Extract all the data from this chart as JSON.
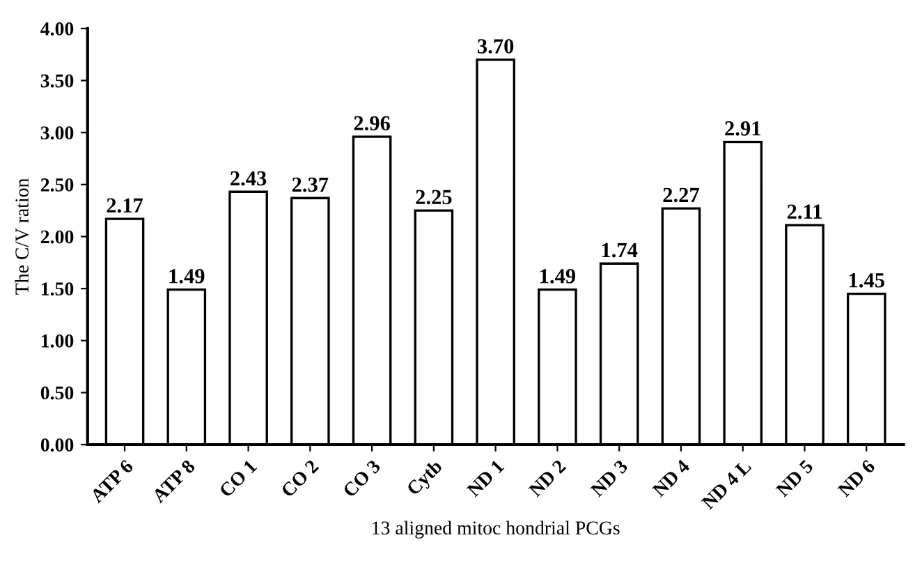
{
  "chart_data": {
    "type": "bar",
    "xlabel": "13 aligned mitoc hondrial PCGs",
    "ylabel": "The C/V ration",
    "categories": [
      "ATP 6",
      "ATP 8",
      "CO 1",
      "CO 2",
      "CO 3",
      "Cytb",
      "ND 1",
      "ND 2",
      "ND 3",
      "ND 4",
      "ND 4 L",
      "ND 5",
      "ND 6"
    ],
    "values": [
      2.17,
      1.49,
      2.43,
      2.37,
      2.96,
      2.25,
      3.7,
      1.49,
      1.74,
      2.27,
      2.91,
      2.11,
      1.45
    ],
    "value_labels": [
      "2.17",
      "1.49",
      "2.43",
      "2.37",
      "2.96",
      "2.25",
      "3.70",
      "1.49",
      "1.74",
      "2.27",
      "2.91",
      "2.11",
      "1.45"
    ],
    "color": "#ffffff",
    "ylim": [
      0,
      4
    ],
    "yticks": [
      {
        "value": 0,
        "label": "0.00"
      },
      {
        "value": 0.5,
        "label": "0.50"
      },
      {
        "value": 1,
        "label": "1.00"
      },
      {
        "value": 1.5,
        "label": "1.50"
      },
      {
        "value": 2,
        "label": "2.00"
      },
      {
        "value": 2.5,
        "label": "2.50"
      },
      {
        "value": 3,
        "label": "3.00"
      },
      {
        "value": 3.5,
        "label": "3.50"
      },
      {
        "value": 4,
        "label": "4.00"
      }
    ],
    "grid": false,
    "legend": false
  }
}
